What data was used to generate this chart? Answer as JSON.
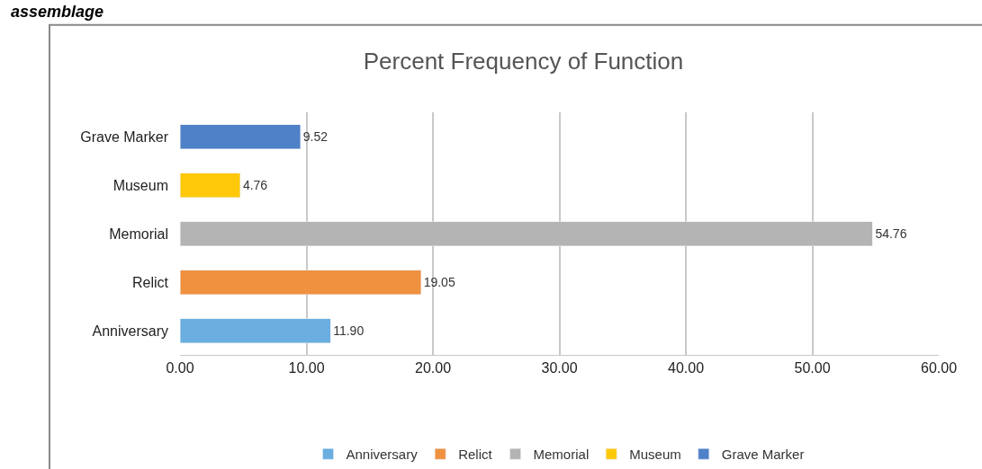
{
  "chart_data": {
    "type": "bar",
    "orientation": "horizontal",
    "stacked": true,
    "title": "Percent Frequency of Function",
    "annotations": [
      "assemblage"
    ],
    "categories": [
      "Grave Marker",
      "Museum",
      "Memorial",
      "Relict",
      "Anniversary"
    ],
    "series": [
      {
        "name": "Anniversary",
        "color": "#6aaee0",
        "values": [
          null,
          null,
          null,
          null,
          11.9
        ],
        "value_labels": [
          null,
          null,
          null,
          null,
          "11.90"
        ]
      },
      {
        "name": "Relict",
        "color": "#f0913f",
        "values": [
          null,
          null,
          null,
          19.05,
          null
        ],
        "value_labels": [
          null,
          null,
          null,
          "19.05",
          null
        ]
      },
      {
        "name": "Memorial",
        "color": "#b4b4b4",
        "values": [
          null,
          null,
          54.76,
          null,
          null
        ],
        "value_labels": [
          null,
          null,
          "54.76",
          null,
          null
        ]
      },
      {
        "name": "Museum",
        "color": "#ffc808",
        "values": [
          null,
          4.76,
          null,
          null,
          null
        ],
        "value_labels": [
          null,
          "4.76",
          null,
          null,
          null
        ]
      },
      {
        "name": "Grave Marker",
        "color": "#4f81c8",
        "values": [
          9.52,
          null,
          null,
          null,
          null
        ],
        "value_labels": [
          "9.52",
          null,
          null,
          null,
          null
        ]
      }
    ],
    "xlim": [
      0,
      60
    ],
    "xticks": [
      {
        "value": 0,
        "label": "0.00"
      },
      {
        "value": 10,
        "label": "10.00"
      },
      {
        "value": 20,
        "label": "20.00"
      },
      {
        "value": 30,
        "label": "30.00"
      },
      {
        "value": 40,
        "label": "40.00"
      },
      {
        "value": 50,
        "label": "50.00"
      },
      {
        "value": 60,
        "label": "60.00"
      }
    ],
    "grid": "x",
    "legend": "bottom"
  }
}
